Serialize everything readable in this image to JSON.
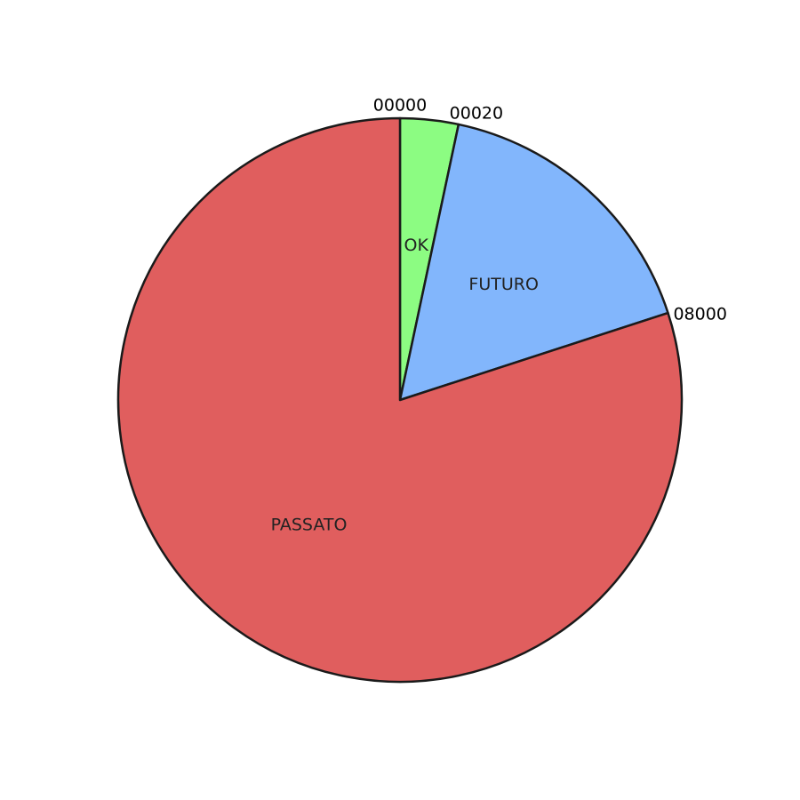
{
  "chart_data": {
    "type": "pie",
    "title": "",
    "start_direction": "top",
    "direction": "clockwise",
    "slices": [
      {
        "label": "OK",
        "value": 20,
        "color": "#8cfc82"
      },
      {
        "label": "FUTURO",
        "value": 100,
        "color": "#82b6fc"
      },
      {
        "label": "PASSATO",
        "value": 480,
        "color": "#e05e5e"
      }
    ],
    "boundary_labels": [
      "00000",
      "00020",
      "08000"
    ],
    "legend": "none",
    "grid": false
  }
}
